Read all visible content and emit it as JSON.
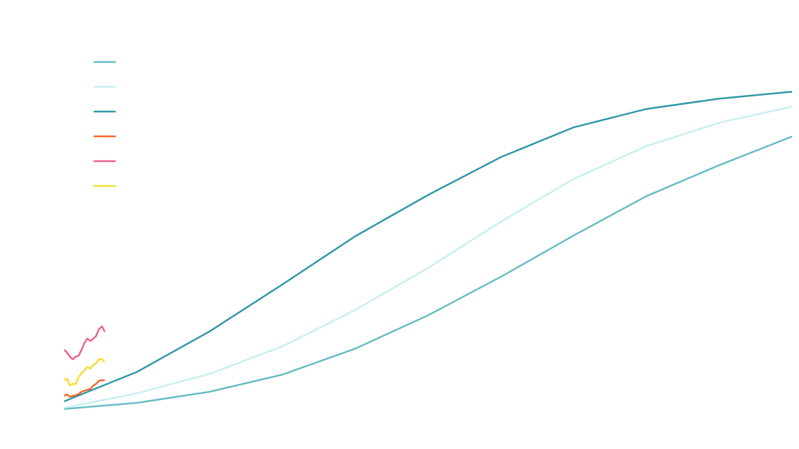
{
  "chart_data": {
    "type": "line",
    "legend": "top-left",
    "xlim": [
      0,
      100
    ],
    "ylim": [
      0,
      100
    ],
    "series": [
      {
        "color": "#66bcc4",
        "x": [
          0,
          10,
          20,
          30,
          40,
          50,
          60,
          70,
          80,
          90,
          100
        ],
        "values": [
          0.2,
          1.8,
          4.7,
          9.2,
          16.0,
          24.7,
          34.8,
          45.6,
          55.9,
          64.0,
          71.5
        ]
      },
      {
        "color": "#c9eef0",
        "x": [
          0,
          10,
          20,
          30,
          40,
          50,
          60,
          70,
          80,
          90,
          100
        ],
        "values": [
          0.5,
          4.3,
          9.4,
          16.6,
          26.1,
          37.1,
          49.2,
          60.4,
          69.0,
          75.1,
          79.3
        ]
      },
      {
        "color": "#2e97a7",
        "x": [
          0,
          10,
          20,
          30,
          40,
          50,
          60,
          70,
          80,
          90,
          100
        ],
        "values": [
          2.2,
          9.9,
          20.5,
          32.8,
          45.4,
          56.2,
          66.1,
          73.9,
          78.7,
          81.4,
          83.2
        ]
      },
      {
        "color": "#f4652a",
        "x": [
          0,
          0.4,
          0.8,
          1.2,
          1.6,
          2.0,
          2.4,
          2.8,
          3.2,
          3.6,
          4.0,
          4.4,
          4.8,
          5.2,
          5.6
        ],
        "values": [
          3.6,
          4.0,
          3.4,
          3.6,
          3.8,
          4.1,
          4.7,
          5.0,
          5.2,
          5.4,
          6.3,
          6.8,
          7.6,
          7.7,
          7.7
        ]
      },
      {
        "color": "#ee5f8e",
        "x": [
          0,
          0.4,
          0.8,
          1.2,
          1.6,
          2.0,
          2.4,
          2.8,
          3.2,
          3.6,
          4.0,
          4.4,
          4.8,
          5.2,
          5.6
        ],
        "values": [
          15.7,
          15.0,
          13.9,
          13.2,
          13.9,
          14.1,
          15.7,
          17.5,
          18.6,
          18.0,
          18.6,
          19.3,
          21.1,
          21.8,
          20.4
        ]
      },
      {
        "color": "#f6dc2e",
        "x": [
          0,
          0.4,
          0.8,
          1.2,
          1.6,
          2.0,
          2.4,
          2.8,
          3.2,
          3.6,
          4.0,
          4.4,
          4.8,
          5.2,
          5.6
        ],
        "values": [
          7.7,
          8.1,
          6.3,
          6.8,
          6.7,
          8.5,
          9.6,
          10.3,
          11.2,
          10.8,
          11.7,
          12.1,
          13.2,
          13.2,
          12.4
        ]
      }
    ]
  }
}
